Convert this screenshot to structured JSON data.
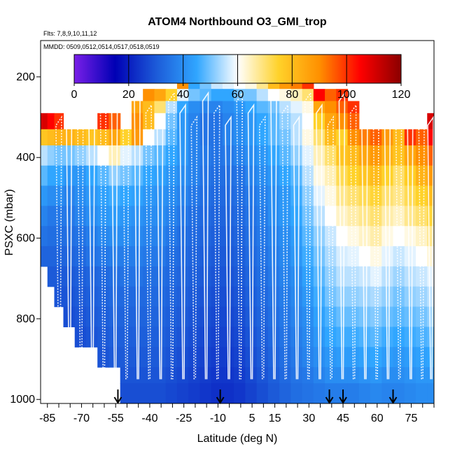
{
  "chart_data": {
    "type": "heatmap",
    "title": "ATOM4 Northbound O3_GMI_trop",
    "subtitle_flights": "Flts: 7,8,9,10,11,12",
    "subtitle_dates": "MMDD: 0509,0512,0514,0517,0518,0519",
    "xlabel": "Latitude (deg N)",
    "ylabel": "PSXC (mbar)",
    "xlim": [
      -88,
      85
    ],
    "ylim": [
      1010,
      110
    ],
    "x_ticks": [
      -85,
      -80,
      -75,
      -70,
      -65,
      -60,
      -55,
      -50,
      -45,
      -40,
      -35,
      -30,
      -25,
      -20,
      -15,
      -10,
      -5,
      0,
      5,
      10,
      15,
      20,
      25,
      30,
      35,
      40,
      45,
      50,
      55,
      60,
      65,
      70,
      75,
      80,
      85
    ],
    "x_tick_labels": [
      "-85",
      "-70",
      "-55",
      "-40",
      "-25",
      "-10",
      "5",
      "15",
      "30",
      "45",
      "60",
      "75"
    ],
    "y_tick_labels": [
      200,
      400,
      600,
      800,
      1000
    ],
    "colorbar": {
      "min": 0,
      "max": 120,
      "tick_labels": [
        0,
        20,
        40,
        60,
        80,
        100,
        120
      ],
      "colors": [
        "#7a1fe8",
        "#0000b4",
        "#1c5ad8",
        "#30a6ff",
        "#ffffff",
        "#ffd22a",
        "#ff9000",
        "#ff0000",
        "#8a0000"
      ]
    },
    "flight_marker_latitudes": [
      -54,
      -9,
      39,
      45,
      67
    ],
    "column_edges": [
      -88,
      -85,
      -82,
      -78,
      -73,
      -68,
      -63,
      -58,
      -53,
      -48,
      -43,
      -38,
      -33,
      -28,
      -23,
      -18,
      -13,
      -8,
      -3,
      2,
      7,
      12,
      17,
      22,
      27,
      32,
      37,
      42,
      47,
      52,
      57,
      62,
      67,
      72,
      77,
      82,
      85
    ],
    "pressure_bin_edges": [
      160,
      230,
      260,
      290,
      330,
      370,
      420,
      470,
      520,
      570,
      620,
      670,
      720,
      770,
      820,
      870,
      920,
      960,
      1010
    ],
    "o3_ppbv_rows_top_to_bottom": [
      [
        null,
        null,
        null,
        null,
        null,
        null,
        null,
        null,
        null,
        null,
        null,
        null,
        null,
        90,
        45,
        50,
        56,
        58,
        60,
        62,
        68,
        80,
        88,
        92,
        100,
        null,
        null,
        null,
        null,
        null,
        null,
        null,
        null,
        null,
        null,
        null
      ],
      [
        null,
        null,
        null,
        null,
        null,
        null,
        null,
        null,
        null,
        null,
        90,
        85,
        75,
        58,
        50,
        48,
        45,
        45,
        50,
        50,
        55,
        60,
        62,
        65,
        70,
        105,
        95,
        100,
        null,
        null,
        null,
        null,
        null,
        null,
        null,
        null
      ],
      [
        null,
        null,
        null,
        null,
        null,
        null,
        null,
        null,
        null,
        85,
        80,
        70,
        55,
        45,
        40,
        38,
        38,
        40,
        42,
        45,
        48,
        50,
        55,
        58,
        62,
        85,
        90,
        95,
        100,
        null,
        null,
        null,
        null,
        null,
        null,
        null
      ],
      [
        110,
        105,
        100,
        null,
        null,
        null,
        100,
        95,
        null,
        90,
        80,
        60,
        50,
        42,
        38,
        35,
        35,
        38,
        40,
        42,
        45,
        48,
        52,
        55,
        60,
        75,
        85,
        90,
        95,
        null,
        null,
        null,
        null,
        null,
        null,
        110
      ],
      [
        78,
        80,
        82,
        82,
        80,
        78,
        80,
        85,
        75,
        88,
        60,
        55,
        48,
        42,
        38,
        35,
        35,
        38,
        40,
        42,
        45,
        48,
        50,
        55,
        62,
        70,
        80,
        75,
        90,
        92,
        95,
        88,
        80,
        100,
        95,
        105
      ],
      [
        55,
        52,
        50,
        50,
        52,
        55,
        60,
        65,
        58,
        55,
        50,
        48,
        45,
        42,
        38,
        36,
        35,
        36,
        38,
        40,
        42,
        45,
        48,
        52,
        58,
        65,
        70,
        78,
        80,
        85,
        88,
        82,
        78,
        85,
        90,
        95
      ],
      [
        48,
        45,
        45,
        42,
        42,
        45,
        48,
        52,
        50,
        48,
        45,
        44,
        42,
        40,
        38,
        35,
        34,
        34,
        35,
        38,
        40,
        42,
        45,
        48,
        55,
        62,
        65,
        72,
        75,
        78,
        80,
        75,
        70,
        76,
        82,
        88
      ],
      [
        42,
        40,
        40,
        38,
        40,
        42,
        44,
        46,
        45,
        44,
        42,
        41,
        40,
        38,
        36,
        34,
        33,
        33,
        34,
        36,
        38,
        40,
        42,
        46,
        52,
        58,
        62,
        68,
        70,
        72,
        74,
        70,
        68,
        72,
        75,
        80
      ],
      [
        38,
        36,
        36,
        36,
        38,
        40,
        42,
        43,
        42,
        41,
        40,
        40,
        38,
        36,
        34,
        33,
        32,
        32,
        33,
        35,
        37,
        40,
        42,
        45,
        50,
        55,
        60,
        64,
        66,
        68,
        70,
        66,
        64,
        68,
        70,
        74
      ],
      [
        35,
        34,
        34,
        34,
        35,
        37,
        39,
        40,
        40,
        39,
        38,
        38,
        36,
        34,
        33,
        32,
        31,
        31,
        32,
        34,
        36,
        38,
        40,
        43,
        48,
        52,
        56,
        60,
        62,
        64,
        66,
        62,
        60,
        62,
        64,
        68
      ],
      [
        32,
        32,
        32,
        32,
        33,
        35,
        36,
        37,
        37,
        37,
        36,
        36,
        34,
        33,
        32,
        31,
        30,
        30,
        31,
        33,
        35,
        37,
        39,
        42,
        46,
        50,
        54,
        57,
        58,
        60,
        62,
        58,
        56,
        58,
        60,
        63
      ],
      [
        null,
        30,
        30,
        30,
        31,
        32,
        33,
        34,
        35,
        35,
        34,
        34,
        33,
        32,
        31,
        30,
        29,
        29,
        30,
        32,
        34,
        36,
        38,
        40,
        44,
        48,
        52,
        55,
        55,
        56,
        58,
        55,
        53,
        55,
        56,
        58
      ],
      [
        null,
        null,
        29,
        29,
        30,
        31,
        32,
        33,
        33,
        33,
        33,
        33,
        32,
        31,
        30,
        29,
        28,
        28,
        29,
        31,
        33,
        35,
        37,
        39,
        42,
        46,
        50,
        52,
        52,
        53,
        54,
        52,
        50,
        52,
        53,
        55
      ],
      [
        null,
        null,
        null,
        28,
        29,
        30,
        31,
        32,
        32,
        32,
        32,
        32,
        31,
        30,
        29,
        28,
        27,
        27,
        28,
        30,
        32,
        34,
        36,
        38,
        40,
        44,
        47,
        49,
        49,
        50,
        51,
        49,
        48,
        49,
        50,
        52
      ],
      [
        null,
        null,
        null,
        null,
        28,
        29,
        30,
        31,
        31,
        31,
        31,
        31,
        30,
        29,
        28,
        27,
        26,
        26,
        27,
        29,
        31,
        33,
        35,
        37,
        39,
        42,
        45,
        46,
        46,
        47,
        48,
        46,
        45,
        46,
        47,
        48
      ],
      [
        null,
        null,
        null,
        null,
        null,
        null,
        29,
        30,
        30,
        30,
        30,
        30,
        29,
        28,
        27,
        26,
        25,
        25,
        26,
        28,
        30,
        32,
        34,
        36,
        38,
        40,
        42,
        43,
        43,
        44,
        45,
        43,
        42,
        43,
        44,
        45
      ],
      [
        null,
        null,
        null,
        null,
        null,
        null,
        null,
        null,
        29,
        29,
        29,
        29,
        28,
        27,
        26,
        25,
        24,
        24,
        25,
        27,
        29,
        31,
        33,
        35,
        36,
        38,
        40,
        40,
        40,
        41,
        42,
        40,
        40,
        41,
        42,
        42
      ],
      [
        null,
        null,
        null,
        null,
        null,
        null,
        null,
        null,
        28,
        28,
        28,
        28,
        27,
        26,
        25,
        24,
        23,
        23,
        24,
        26,
        28,
        30,
        32,
        34,
        35,
        36,
        37,
        37,
        37,
        38,
        39,
        38,
        38,
        39,
        40,
        40
      ]
    ]
  }
}
